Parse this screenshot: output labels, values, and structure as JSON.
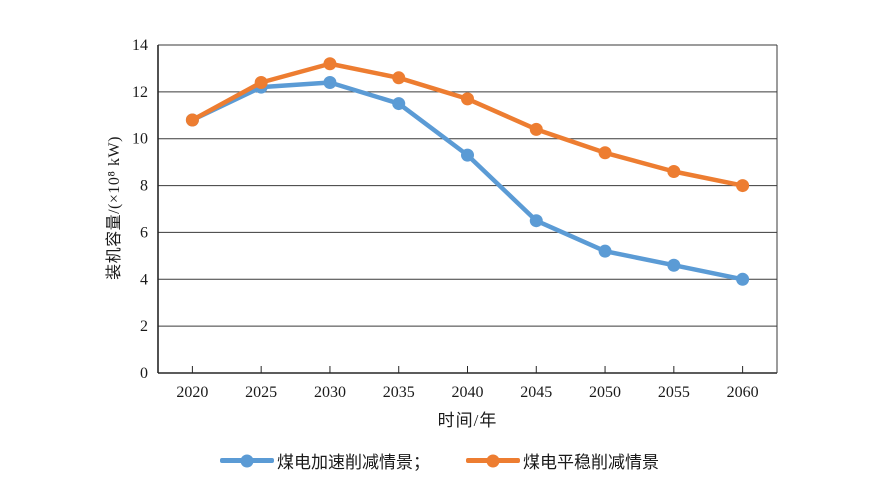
{
  "figure": {
    "background": "#ffffff",
    "axis_color": "#262626",
    "grid_color": "#3a3a3a"
  },
  "chart_data": {
    "type": "line",
    "title": "",
    "xlabel": "时间/年",
    "ylabel": "装机容量/(×10⁸ kW)",
    "categories": [
      "2020",
      "2025",
      "2030",
      "2035",
      "2040",
      "2045",
      "2050",
      "2055",
      "2060"
    ],
    "ylim": [
      0,
      14
    ],
    "yticks": [
      0,
      2,
      4,
      6,
      8,
      10,
      12,
      14
    ],
    "grid": "horizontal",
    "legend_position": "bottom",
    "series": [
      {
        "name": "煤电加速削减情景",
        "legend_label": "煤电加速削减情景；",
        "color": "#5B9BD5",
        "marker": "circle",
        "values": [
          10.8,
          12.2,
          12.4,
          11.5,
          9.3,
          6.5,
          5.2,
          4.6,
          4.0
        ]
      },
      {
        "name": "煤电平稳削减情景",
        "legend_label": "煤电平稳削减情景",
        "color": "#ED7D31",
        "marker": "circle",
        "values": [
          10.8,
          12.4,
          13.2,
          12.6,
          11.7,
          10.4,
          9.4,
          8.6,
          8.0
        ]
      }
    ]
  }
}
